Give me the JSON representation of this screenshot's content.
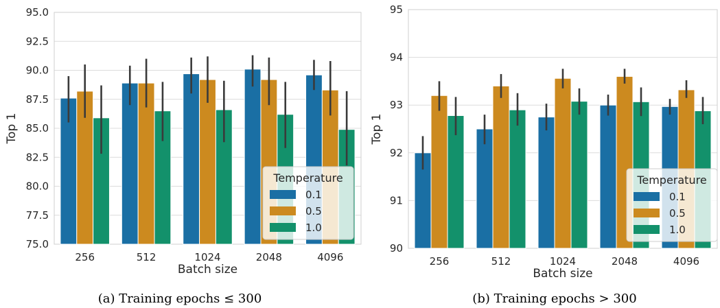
{
  "colors": {
    "t01": "#1a6fa4",
    "t05": "#cc8a1f",
    "t10": "#13916b",
    "grid": "#dcdcdc",
    "err": "#3a3a3a"
  },
  "chart_data": [
    {
      "type": "bar",
      "caption": "(a) Training epochs ≤ 300",
      "xlabel": "Batch size",
      "ylabel": "Top 1",
      "ylim": [
        75.0,
        95.0
      ],
      "yticks": [
        "75.0",
        "77.5",
        "80.0",
        "82.5",
        "85.0",
        "87.5",
        "90.0",
        "92.5",
        "95.0"
      ],
      "categories": [
        "256",
        "512",
        "1024",
        "2048",
        "4096"
      ],
      "legend_title": "Temperature",
      "legend_position": "lower-right",
      "series": [
        {
          "name": "0.1",
          "values": [
            87.6,
            88.9,
            89.7,
            90.1,
            89.6
          ],
          "err_low": [
            85.5,
            87.0,
            88.0,
            88.6,
            88.3
          ],
          "err_high": [
            89.5,
            90.4,
            91.1,
            91.3,
            90.9
          ]
        },
        {
          "name": "0.5",
          "values": [
            88.2,
            88.9,
            89.2,
            89.2,
            88.3
          ],
          "err_low": [
            85.9,
            86.8,
            87.2,
            87.0,
            86.1
          ],
          "err_high": [
            90.5,
            91.0,
            91.2,
            91.1,
            90.8
          ]
        },
        {
          "name": "1.0",
          "values": [
            85.9,
            86.5,
            86.6,
            86.2,
            84.9
          ],
          "err_low": [
            82.8,
            83.9,
            83.8,
            83.3,
            81.8
          ],
          "err_high": [
            88.7,
            89.0,
            89.1,
            89.0,
            88.2
          ]
        }
      ]
    },
    {
      "type": "bar",
      "caption": "(b) Training epochs > 300",
      "xlabel": "Batch size",
      "ylabel": "Top 1",
      "ylim": [
        90,
        95
      ],
      "yticks": [
        "90",
        "91",
        "92",
        "93",
        "94",
        "95"
      ],
      "categories": [
        "256",
        "512",
        "1024",
        "2048",
        "4096"
      ],
      "legend_title": "Temperature",
      "legend_position": "lower-right",
      "series": [
        {
          "name": "0.1",
          "values": [
            92.0,
            92.5,
            92.75,
            93.0,
            92.97
          ],
          "err_low": [
            91.65,
            92.18,
            92.47,
            92.78,
            92.8
          ],
          "err_high": [
            92.35,
            92.8,
            93.03,
            93.22,
            93.13
          ]
        },
        {
          "name": "0.5",
          "values": [
            93.2,
            93.4,
            93.56,
            93.6,
            93.32
          ],
          "err_low": [
            92.88,
            93.15,
            93.35,
            93.45,
            93.15
          ],
          "err_high": [
            93.5,
            93.65,
            93.76,
            93.76,
            93.52
          ]
        },
        {
          "name": "1.0",
          "values": [
            92.78,
            92.9,
            93.08,
            93.07,
            92.88
          ],
          "err_low": [
            92.37,
            92.57,
            92.8,
            92.77,
            92.6
          ],
          "err_high": [
            93.17,
            93.25,
            93.35,
            93.37,
            93.17
          ]
        }
      ]
    }
  ]
}
